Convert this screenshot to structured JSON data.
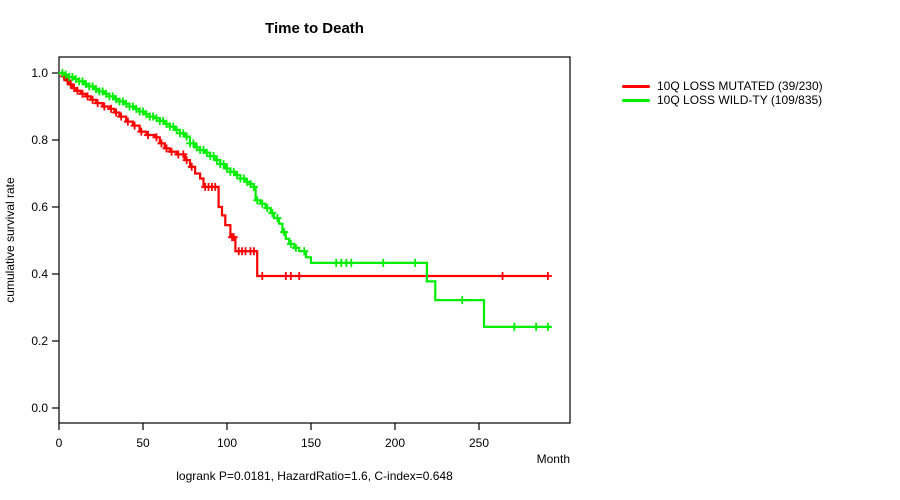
{
  "chart_data": {
    "type": "line",
    "subtype": "kaplan-meier-step",
    "title": "Time to Death",
    "xlabel": "Month",
    "ylabel": "cumulative survival rate",
    "xticks": [
      0,
      50,
      100,
      150,
      200,
      250
    ],
    "yticks": [
      0.0,
      0.2,
      0.4,
      0.6,
      0.8,
      1.0
    ],
    "xlim": [
      0,
      304
    ],
    "ylim": [
      0,
      1.0
    ],
    "grid": false,
    "legend_position": "right-outside",
    "annotation": "logrank P=0.0181, HazardRatio=1.6, C-index=0.648",
    "series": [
      {
        "name": "10Q LOSS MUTATED (39/230)",
        "color": "#ff0000",
        "end_month": 291,
        "steps": [
          [
            0,
            1.0
          ],
          [
            2,
            0.99
          ],
          [
            4,
            0.978
          ],
          [
            6,
            0.966
          ],
          [
            8,
            0.955
          ],
          [
            10,
            0.947
          ],
          [
            13,
            0.938
          ],
          [
            16,
            0.93
          ],
          [
            19,
            0.92
          ],
          [
            22,
            0.91
          ],
          [
            26,
            0.9
          ],
          [
            30,
            0.893
          ],
          [
            33,
            0.882
          ],
          [
            36,
            0.87
          ],
          [
            40,
            0.855
          ],
          [
            44,
            0.843
          ],
          [
            48,
            0.825
          ],
          [
            52,
            0.815
          ],
          [
            57,
            0.808
          ],
          [
            60,
            0.79
          ],
          [
            63,
            0.775
          ],
          [
            66,
            0.765
          ],
          [
            70,
            0.757
          ],
          [
            75,
            0.74
          ],
          [
            78,
            0.72
          ],
          [
            81,
            0.7
          ],
          [
            84,
            0.685
          ],
          [
            86,
            0.66
          ],
          [
            95,
            0.6
          ],
          [
            97,
            0.575
          ],
          [
            99,
            0.546
          ],
          [
            102,
            0.51
          ],
          [
            105,
            0.468
          ],
          [
            118,
            0.394
          ]
        ],
        "censor_months": [
          3,
          5,
          7,
          9,
          11,
          14,
          17,
          20,
          23,
          27,
          31,
          34,
          37,
          41,
          45,
          49,
          53,
          58,
          61,
          64,
          67,
          71,
          74,
          76,
          79,
          87,
          89,
          91,
          93,
          103,
          104,
          107,
          109,
          111,
          114,
          116,
          121,
          135,
          138,
          143,
          264,
          291
        ]
      },
      {
        "name": "10Q LOSS WILD-TY (109/835)",
        "color": "#00ee00",
        "end_month": 293,
        "steps": [
          [
            0,
            1.0
          ],
          [
            3,
            0.995
          ],
          [
            6,
            0.988
          ],
          [
            9,
            0.982
          ],
          [
            12,
            0.975
          ],
          [
            15,
            0.967
          ],
          [
            18,
            0.96
          ],
          [
            21,
            0.952
          ],
          [
            24,
            0.945
          ],
          [
            27,
            0.938
          ],
          [
            30,
            0.93
          ],
          [
            33,
            0.922
          ],
          [
            36,
            0.915
          ],
          [
            39,
            0.908
          ],
          [
            42,
            0.9
          ],
          [
            45,
            0.893
          ],
          [
            48,
            0.885
          ],
          [
            51,
            0.877
          ],
          [
            54,
            0.87
          ],
          [
            57,
            0.865
          ],
          [
            60,
            0.857
          ],
          [
            63,
            0.848
          ],
          [
            66,
            0.84
          ],
          [
            69,
            0.83
          ],
          [
            72,
            0.82
          ],
          [
            75,
            0.81
          ],
          [
            78,
            0.79
          ],
          [
            81,
            0.778
          ],
          [
            84,
            0.77
          ],
          [
            87,
            0.762
          ],
          [
            90,
            0.752
          ],
          [
            93,
            0.74
          ],
          [
            96,
            0.728
          ],
          [
            99,
            0.715
          ],
          [
            102,
            0.705
          ],
          [
            105,
            0.695
          ],
          [
            108,
            0.685
          ],
          [
            111,
            0.675
          ],
          [
            114,
            0.668
          ],
          [
            116,
            0.66
          ],
          [
            117,
            0.62
          ],
          [
            120,
            0.61
          ],
          [
            123,
            0.597
          ],
          [
            126,
            0.582
          ],
          [
            128,
            0.567
          ],
          [
            131,
            0.55
          ],
          [
            133,
            0.525
          ],
          [
            135,
            0.505
          ],
          [
            137,
            0.49
          ],
          [
            140,
            0.478
          ],
          [
            143,
            0.468
          ],
          [
            147,
            0.45
          ],
          [
            150,
            0.433
          ],
          [
            219,
            0.378
          ],
          [
            224,
            0.322
          ],
          [
            253,
            0.242
          ]
        ],
        "censor_months": [
          2,
          4,
          6,
          8,
          10,
          12,
          14,
          16,
          18,
          20,
          22,
          24,
          26,
          28,
          30,
          32,
          34,
          36,
          38,
          40,
          42,
          44,
          46,
          48,
          50,
          52,
          54,
          56,
          58,
          60,
          62,
          64,
          66,
          68,
          70,
          72,
          74,
          76,
          78,
          80,
          82,
          84,
          86,
          88,
          90,
          92,
          94,
          96,
          98,
          100,
          102,
          104,
          106,
          108,
          110,
          112,
          114,
          116,
          118,
          121,
          124,
          127,
          130,
          134,
          138,
          141,
          146,
          165,
          168,
          171,
          174,
          193,
          212,
          240,
          271,
          284,
          291
        ]
      }
    ]
  }
}
